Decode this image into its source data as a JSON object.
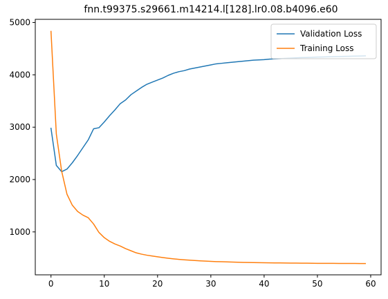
{
  "chart_data": {
    "type": "line",
    "title": "fnn.t99375.s29661.m14214.l[128].lr0.08.b4096.e60",
    "xlabel": "",
    "ylabel": "",
    "xlim": [
      -2.95,
      61.95
    ],
    "ylim": [
      180,
      5060
    ],
    "xticks": [
      0,
      10,
      20,
      30,
      40,
      50,
      60
    ],
    "yticks": [
      1000,
      2000,
      3000,
      4000,
      5000
    ],
    "grid": false,
    "legend_position": "upper right",
    "series": [
      {
        "name": "Validation Loss",
        "color": "#1f77b4",
        "x": [
          0,
          1,
          2,
          3,
          4,
          5,
          6,
          7,
          8,
          9,
          10,
          11,
          12,
          13,
          14,
          15,
          16,
          17,
          18,
          19,
          20,
          21,
          22,
          23,
          24,
          25,
          26,
          27,
          28,
          29,
          30,
          31,
          32,
          33,
          34,
          35,
          36,
          37,
          38,
          39,
          40,
          41,
          42,
          43,
          44,
          45,
          46,
          47,
          48,
          49,
          50,
          51,
          52,
          53,
          54,
          55,
          56,
          57,
          58,
          59
        ],
        "values": [
          2980,
          2270,
          2150,
          2200,
          2320,
          2460,
          2610,
          2760,
          2970,
          2990,
          3100,
          3220,
          3330,
          3450,
          3520,
          3620,
          3690,
          3760,
          3820,
          3860,
          3900,
          3940,
          3990,
          4030,
          4060,
          4080,
          4110,
          4130,
          4150,
          4170,
          4190,
          4210,
          4220,
          4230,
          4240,
          4250,
          4260,
          4270,
          4280,
          4285,
          4290,
          4300,
          4305,
          4310,
          4315,
          4320,
          4325,
          4330,
          4332,
          4335,
          4340,
          4342,
          4345,
          4347,
          4350,
          4352,
          4355,
          4357,
          4360,
          4362
        ]
      },
      {
        "name": "Training Loss",
        "color": "#ff7f0e",
        "x": [
          0,
          1,
          2,
          3,
          4,
          5,
          6,
          7,
          8,
          9,
          10,
          11,
          12,
          13,
          14,
          15,
          16,
          17,
          18,
          19,
          20,
          21,
          22,
          23,
          24,
          25,
          26,
          27,
          28,
          29,
          30,
          31,
          32,
          33,
          34,
          35,
          36,
          37,
          38,
          39,
          40,
          41,
          42,
          43,
          44,
          45,
          46,
          47,
          48,
          49,
          50,
          51,
          52,
          53,
          54,
          55,
          56,
          57,
          58,
          59
        ],
        "values": [
          4830,
          2870,
          2160,
          1720,
          1510,
          1390,
          1320,
          1270,
          1150,
          990,
          890,
          820,
          770,
          730,
          680,
          640,
          600,
          575,
          555,
          540,
          525,
          510,
          497,
          485,
          475,
          467,
          460,
          453,
          447,
          442,
          437,
          433,
          430,
          427,
          424,
          421,
          418,
          416,
          414,
          412,
          410,
          409,
          408,
          407,
          406,
          405,
          404,
          403,
          402,
          401,
          400,
          400,
          399,
          399,
          398,
          398,
          397,
          397,
          396,
          396
        ]
      }
    ]
  }
}
